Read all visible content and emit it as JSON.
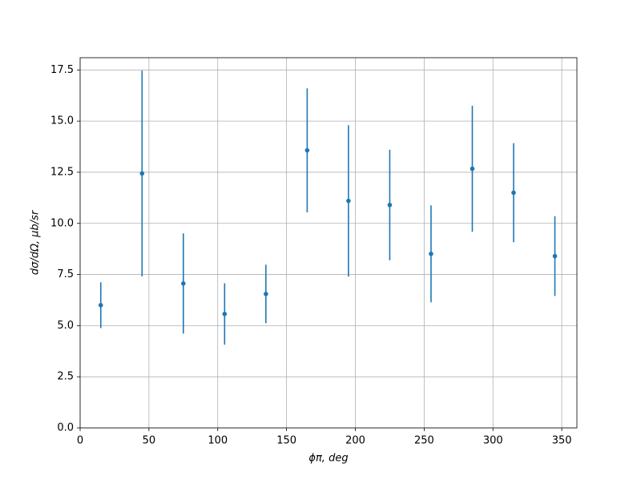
{
  "chart_data": {
    "type": "errorbar",
    "x_label": "ϕπ, deg",
    "y_label": "dσ/dΩ, μb/sr",
    "x": [
      15,
      45,
      75,
      105,
      135,
      165,
      195,
      225,
      255,
      285,
      315,
      345
    ],
    "values": [
      6.0,
      12.44,
      7.06,
      5.57,
      6.55,
      13.57,
      11.1,
      10.9,
      8.51,
      12.67,
      11.5,
      8.4
    ],
    "errors": [
      1.12,
      5.03,
      2.45,
      1.5,
      1.43,
      3.03,
      3.7,
      2.7,
      2.37,
      3.08,
      2.42,
      1.95
    ],
    "color": "#1f77b4",
    "xlim": [
      0,
      361
    ],
    "xticks": [
      0,
      50,
      100,
      150,
      200,
      250,
      300,
      350
    ],
    "ylim": [
      0,
      18.1
    ],
    "yticks": [
      {
        "value": 0,
        "label": "0.0"
      },
      2.5,
      {
        "value": 5,
        "label": "5.0"
      },
      7.5,
      {
        "value": 10,
        "label": "10.0"
      },
      12.5,
      {
        "value": 15,
        "label": "15.0"
      },
      17.5
    ],
    "grid": true
  }
}
